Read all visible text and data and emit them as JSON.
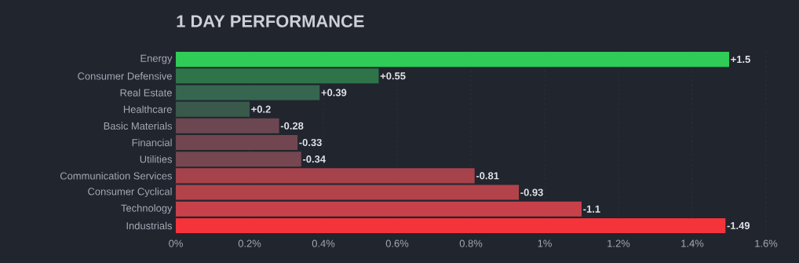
{
  "chart_data": {
    "type": "bar",
    "orientation": "horizontal",
    "title": "1 DAY PERFORMANCE",
    "categories": [
      "Energy",
      "Consumer Defensive",
      "Real Estate",
      "Healthcare",
      "Basic Materials",
      "Financial",
      "Utilities",
      "Communication Services",
      "Consumer Cyclical",
      "Technology",
      "Industrials"
    ],
    "values": [
      1.5,
      0.55,
      0.39,
      0.2,
      -0.28,
      -0.33,
      -0.34,
      -0.81,
      -0.93,
      -1.1,
      -1.49
    ],
    "base": [
      0,
      0,
      0,
      0,
      0.28,
      0.33,
      0.34,
      0.81,
      0.93,
      1.1,
      1.49
    ],
    "value_labels": [
      "+1.5",
      "+0.55",
      "+0.39",
      "+0.2",
      "-0.28",
      "-0.33",
      "-0.34",
      "-0.81",
      "-0.93",
      "-1.1",
      "-1.49"
    ],
    "colors": [
      "#2fcc58",
      "#2f7449",
      "#366650",
      "#39594b",
      "#6c4650",
      "#724650",
      "#764750",
      "#a6424b",
      "#b2434a",
      "#c8414a",
      "#f5333b"
    ],
    "xlim": [
      0,
      1.6
    ],
    "xticks": [
      {
        "value": 0,
        "label": "0%"
      },
      {
        "value": 0.2,
        "label": "0.2%"
      },
      {
        "value": 0.4,
        "label": "0.4%"
      },
      {
        "value": 0.6,
        "label": "0.6%"
      },
      {
        "value": 0.8,
        "label": "0.8%"
      },
      {
        "value": 1,
        "label": "1%"
      },
      {
        "value": 1.2,
        "label": "1.2%"
      },
      {
        "value": 1.4,
        "label": "1.4%"
      },
      {
        "value": 1.6,
        "label": "1.6%"
      }
    ],
    "grid": "x"
  }
}
